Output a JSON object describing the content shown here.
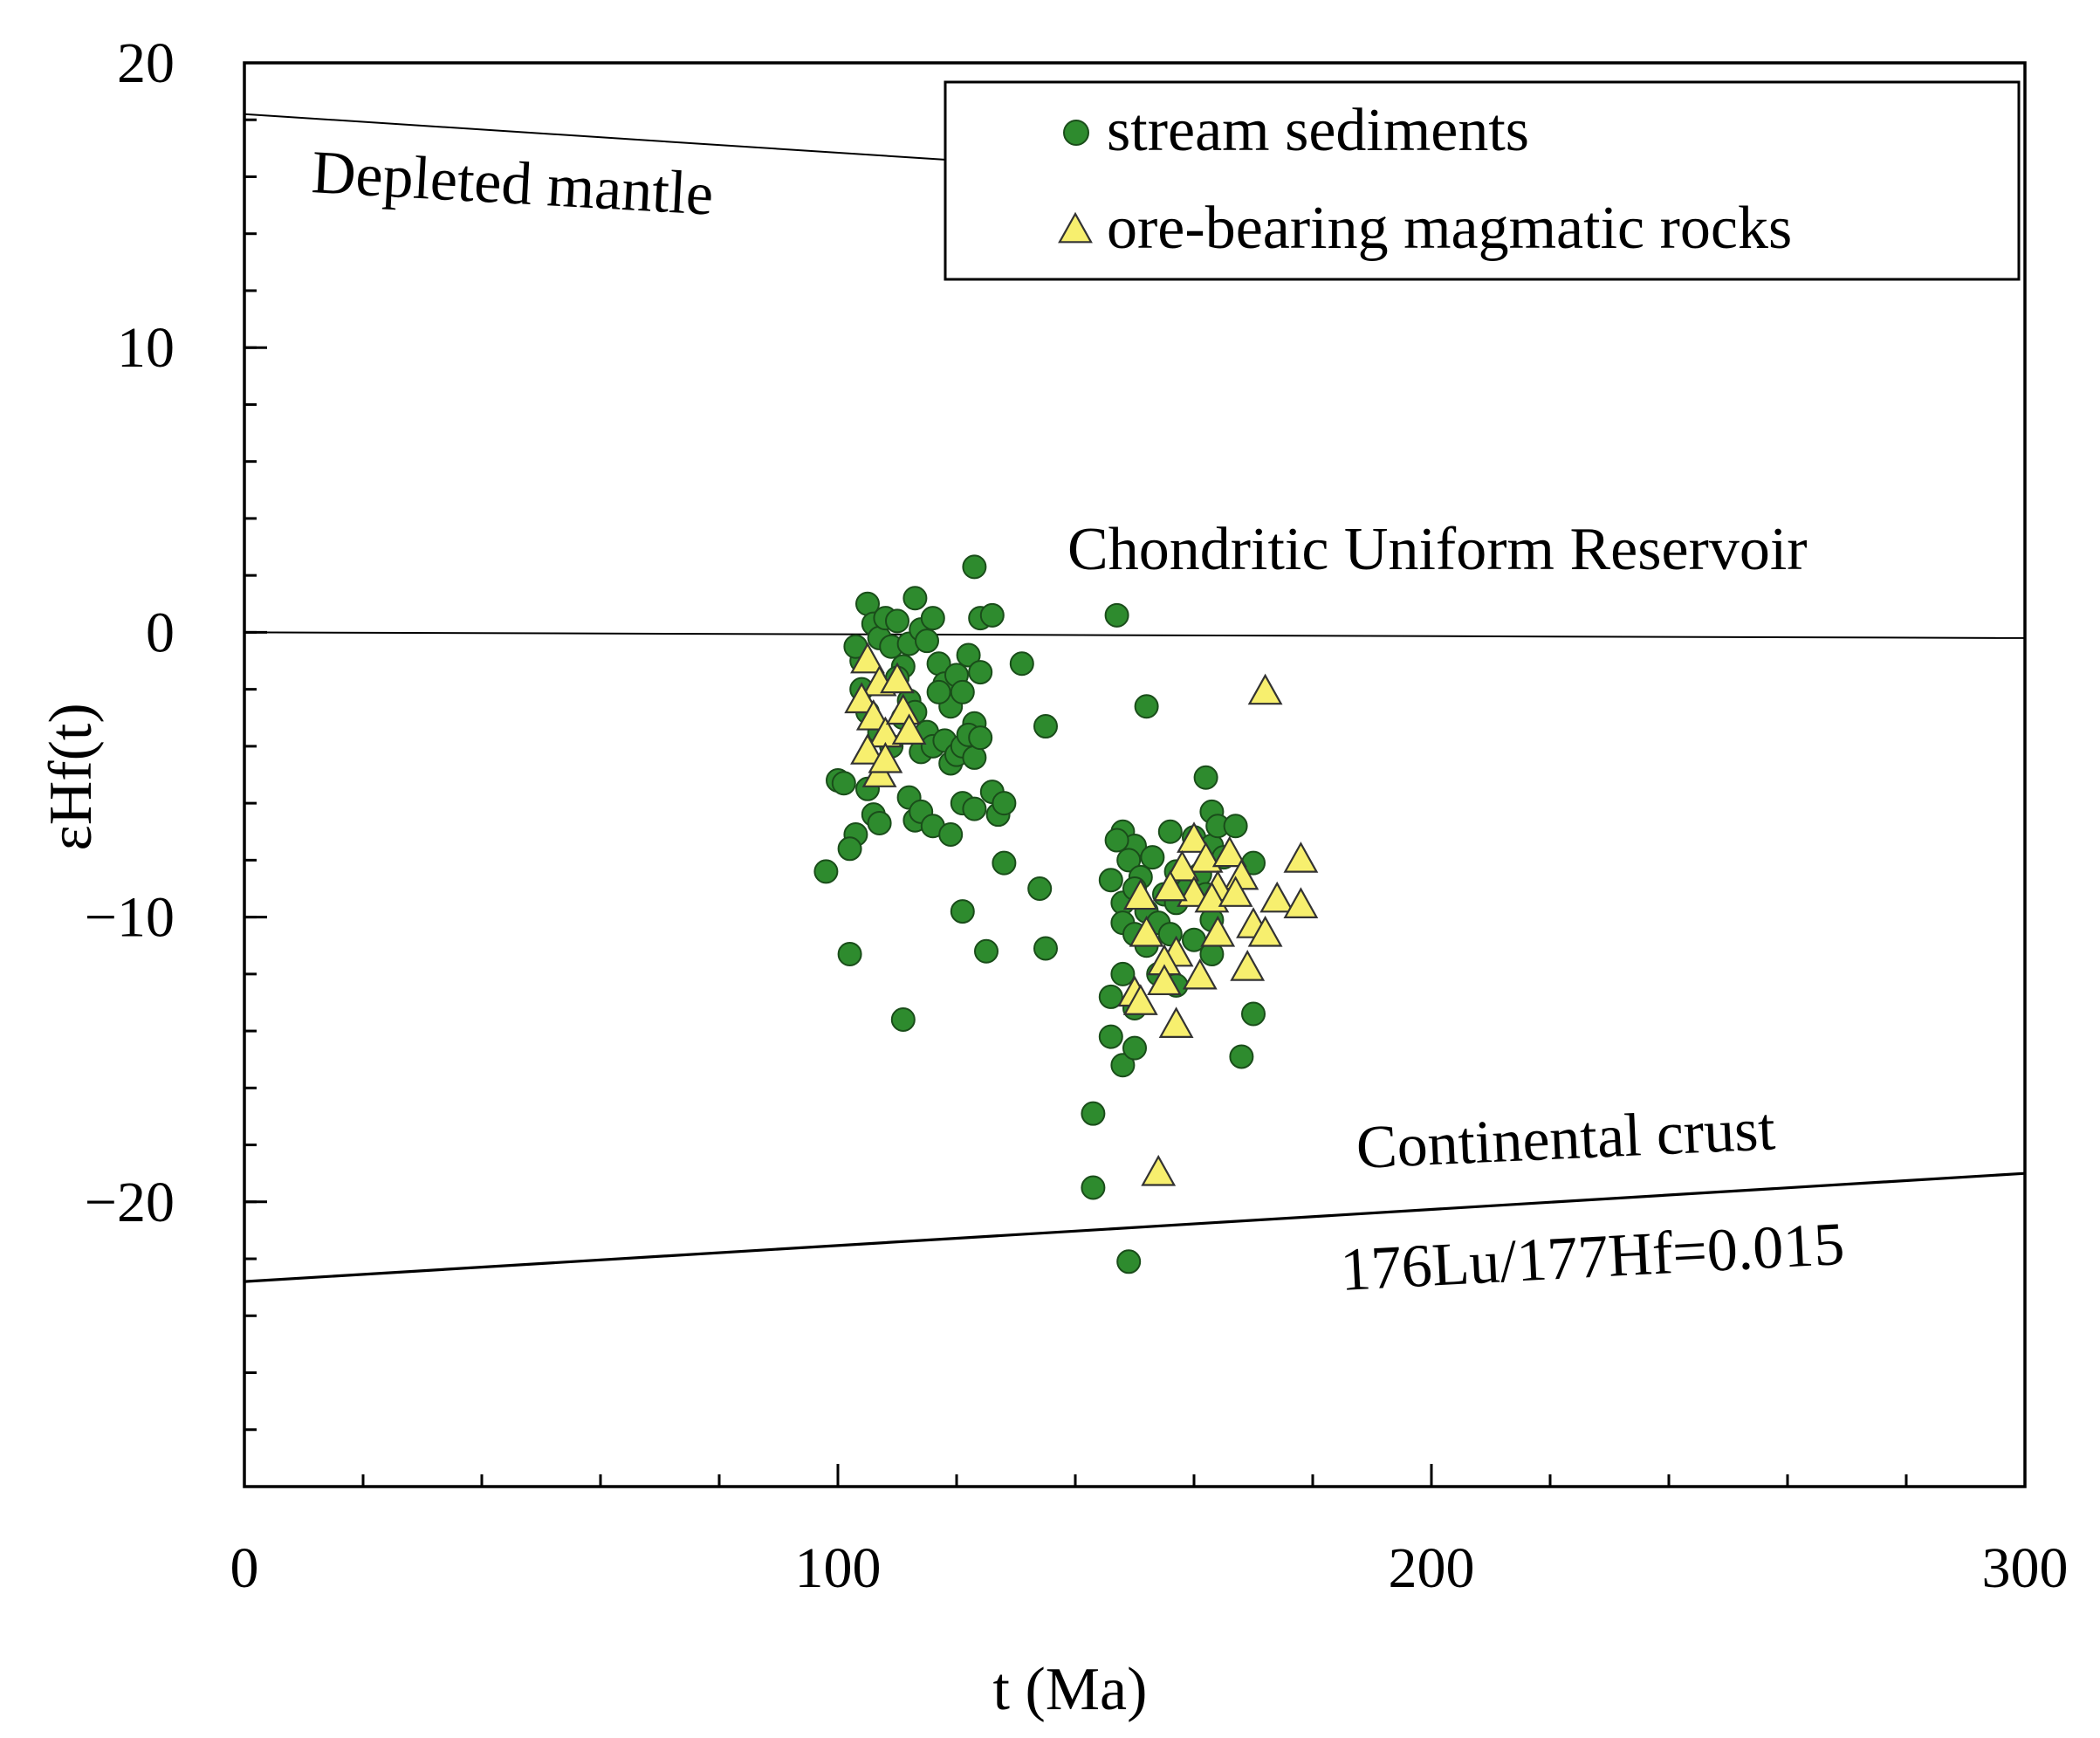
{
  "chart_data": {
    "type": "scatter",
    "xlabel": "t (Ma)",
    "ylabel": "εHf(t)",
    "xlim": [
      0,
      300
    ],
    "ylim": [
      -30,
      20
    ],
    "x_ticks": [
      0,
      100,
      200,
      300
    ],
    "y_ticks": [
      20,
      10,
      0,
      -10,
      -20
    ],
    "x_minor_step": 20,
    "y_minor_step": 2,
    "legend_position": "top-right",
    "colors": {
      "stream_fill": "#2e8b2e",
      "stream_stroke": "#1a4d1a",
      "ore_fill": "#f7ef6e",
      "ore_stroke": "#333333"
    },
    "reference_lines": [
      {
        "name": "Depleted mantle",
        "x": [
          0,
          118
        ],
        "y": [
          18.2,
          16.6
        ],
        "labels": [
          "Depleted mantle"
        ]
      },
      {
        "name": "Chondritic Uniform Reservoir",
        "x": [
          0,
          300
        ],
        "y": [
          0,
          -0.2
        ],
        "labels": [
          "Chondritic Uniform Reservoir"
        ]
      },
      {
        "name": "Continental crust",
        "x": [
          0,
          300
        ],
        "y": [
          -22.8,
          -19
        ],
        "labels": [
          "Continental crust",
          "176Lu/177Hf=0.015"
        ]
      }
    ],
    "series": [
      {
        "name": "stream sediments",
        "marker": "circle",
        "points": [
          [
            105,
            1
          ],
          [
            106,
            0.3
          ],
          [
            107,
            -0.2
          ],
          [
            108,
            0.5
          ],
          [
            109,
            -0.5
          ],
          [
            110,
            0.4
          ],
          [
            111,
            -1.2
          ],
          [
            112,
            -0.4
          ],
          [
            113,
            1.2
          ],
          [
            114,
            0.1
          ],
          [
            115,
            -0.3
          ],
          [
            116,
            0.5
          ],
          [
            117,
            -1.1
          ],
          [
            118,
            -1.8
          ],
          [
            119,
            -2.6
          ],
          [
            120,
            -1.5
          ],
          [
            121,
            -2.1
          ],
          [
            122,
            -0.8
          ],
          [
            123,
            -3.2
          ],
          [
            124,
            -1.4
          ],
          [
            123,
            2.3
          ],
          [
            124,
            0.5
          ],
          [
            126,
            0.6
          ],
          [
            131,
            -1.1
          ],
          [
            135,
            -3.3
          ],
          [
            104,
            -1.0
          ],
          [
            103,
            -0.5
          ],
          [
            104,
            -2.0
          ],
          [
            105,
            -2.8
          ],
          [
            107,
            -3.5
          ],
          [
            109,
            -4.0
          ],
          [
            110,
            -1.6
          ],
          [
            111,
            -3.0
          ],
          [
            112,
            -2.4
          ],
          [
            113,
            -2.8
          ],
          [
            114,
            -4.2
          ],
          [
            115,
            -3.5
          ],
          [
            116,
            -4.0
          ],
          [
            117,
            -2.1
          ],
          [
            118,
            -3.8
          ],
          [
            119,
            -4.6
          ],
          [
            120,
            -4.3
          ],
          [
            121,
            -4.0
          ],
          [
            122,
            -3.6
          ],
          [
            123,
            -4.4
          ],
          [
            124,
            -3.7
          ],
          [
            100,
            -5.2
          ],
          [
            101,
            -5.3
          ],
          [
            105,
            -5.5
          ],
          [
            106,
            -6.4
          ],
          [
            107,
            -6.7
          ],
          [
            103,
            -7.1
          ],
          [
            102,
            -7.6
          ],
          [
            98,
            -8.4
          ],
          [
            112,
            -5.8
          ],
          [
            113,
            -6.6
          ],
          [
            114,
            -6.3
          ],
          [
            116,
            -6.8
          ],
          [
            119,
            -7.1
          ],
          [
            121,
            -6.0
          ],
          [
            123,
            -6.2
          ],
          [
            126,
            -5.6
          ],
          [
            127,
            -6.4
          ],
          [
            128,
            -6.0
          ],
          [
            128,
            -8.1
          ],
          [
            134,
            -9.0
          ],
          [
            121,
            -9.8
          ],
          [
            125,
            -11.2
          ],
          [
            135,
            -11.1
          ],
          [
            102,
            -11.3
          ],
          [
            111,
            -13.6
          ],
          [
            147,
            0.6
          ],
          [
            152,
            -2.6
          ],
          [
            162,
            -5.1
          ],
          [
            163,
            -6.3
          ],
          [
            148,
            -7.0
          ],
          [
            150,
            -7.5
          ],
          [
            147,
            -7.3
          ],
          [
            149,
            -8.0
          ],
          [
            151,
            -8.6
          ],
          [
            153,
            -7.9
          ],
          [
            156,
            -7.0
          ],
          [
            157,
            -8.4
          ],
          [
            160,
            -7.2
          ],
          [
            163,
            -7.5
          ],
          [
            164,
            -6.8
          ],
          [
            165,
            -7.9
          ],
          [
            167,
            -6.8
          ],
          [
            170,
            -8.1
          ],
          [
            146,
            -8.7
          ],
          [
            148,
            -9.5
          ],
          [
            150,
            -9.0
          ],
          [
            152,
            -9.8
          ],
          [
            154,
            -10.2
          ],
          [
            155,
            -9.2
          ],
          [
            157,
            -9.5
          ],
          [
            159,
            -9.0
          ],
          [
            161,
            -8.5
          ],
          [
            162,
            -9.2
          ],
          [
            163,
            -10.1
          ],
          [
            148,
            -10.2
          ],
          [
            150,
            -10.6
          ],
          [
            152,
            -11.0
          ],
          [
            156,
            -10.6
          ],
          [
            160,
            -10.8
          ],
          [
            163,
            -11.3
          ],
          [
            148,
            -12.0
          ],
          [
            146,
            -12.8
          ],
          [
            150,
            -13.2
          ],
          [
            146,
            -14.2
          ],
          [
            148,
            -15.2
          ],
          [
            150,
            -14.6
          ],
          [
            154,
            -12.0
          ],
          [
            157,
            -12.4
          ],
          [
            168,
            -14.9
          ],
          [
            170,
            -13.4
          ],
          [
            143,
            -16.9
          ],
          [
            143,
            -19.5
          ],
          [
            149,
            -22.1
          ]
        ]
      },
      {
        "name": "ore-bearing magmatic rocks",
        "marker": "triangle",
        "points": [
          [
            105,
            -1.0
          ],
          [
            107,
            -1.8
          ],
          [
            110,
            -1.7
          ],
          [
            104,
            -2.4
          ],
          [
            106,
            -3.0
          ],
          [
            108,
            -3.6
          ],
          [
            111,
            -2.8
          ],
          [
            112,
            -3.5
          ],
          [
            105,
            -4.2
          ],
          [
            107,
            -5.0
          ],
          [
            108,
            -4.5
          ],
          [
            172,
            -2.1
          ],
          [
            160,
            -7.3
          ],
          [
            162,
            -8.0
          ],
          [
            158,
            -8.3
          ],
          [
            166,
            -7.8
          ],
          [
            168,
            -8.6
          ],
          [
            178,
            -8.0
          ],
          [
            164,
            -9.0
          ],
          [
            160,
            -9.2
          ],
          [
            156,
            -9.0
          ],
          [
            151,
            -9.3
          ],
          [
            163,
            -9.4
          ],
          [
            167,
            -9.2
          ],
          [
            174,
            -9.4
          ],
          [
            178,
            -9.6
          ],
          [
            170,
            -10.3
          ],
          [
            152,
            -10.6
          ],
          [
            157,
            -11.3
          ],
          [
            164,
            -10.6
          ],
          [
            172,
            -10.6
          ],
          [
            155,
            -11.6
          ],
          [
            161,
            -12.1
          ],
          [
            169,
            -11.8
          ],
          [
            155,
            -12.3
          ],
          [
            150,
            -12.7
          ],
          [
            151,
            -13.0
          ],
          [
            157,
            -13.8
          ],
          [
            154,
            -19.0
          ]
        ]
      }
    ]
  }
}
